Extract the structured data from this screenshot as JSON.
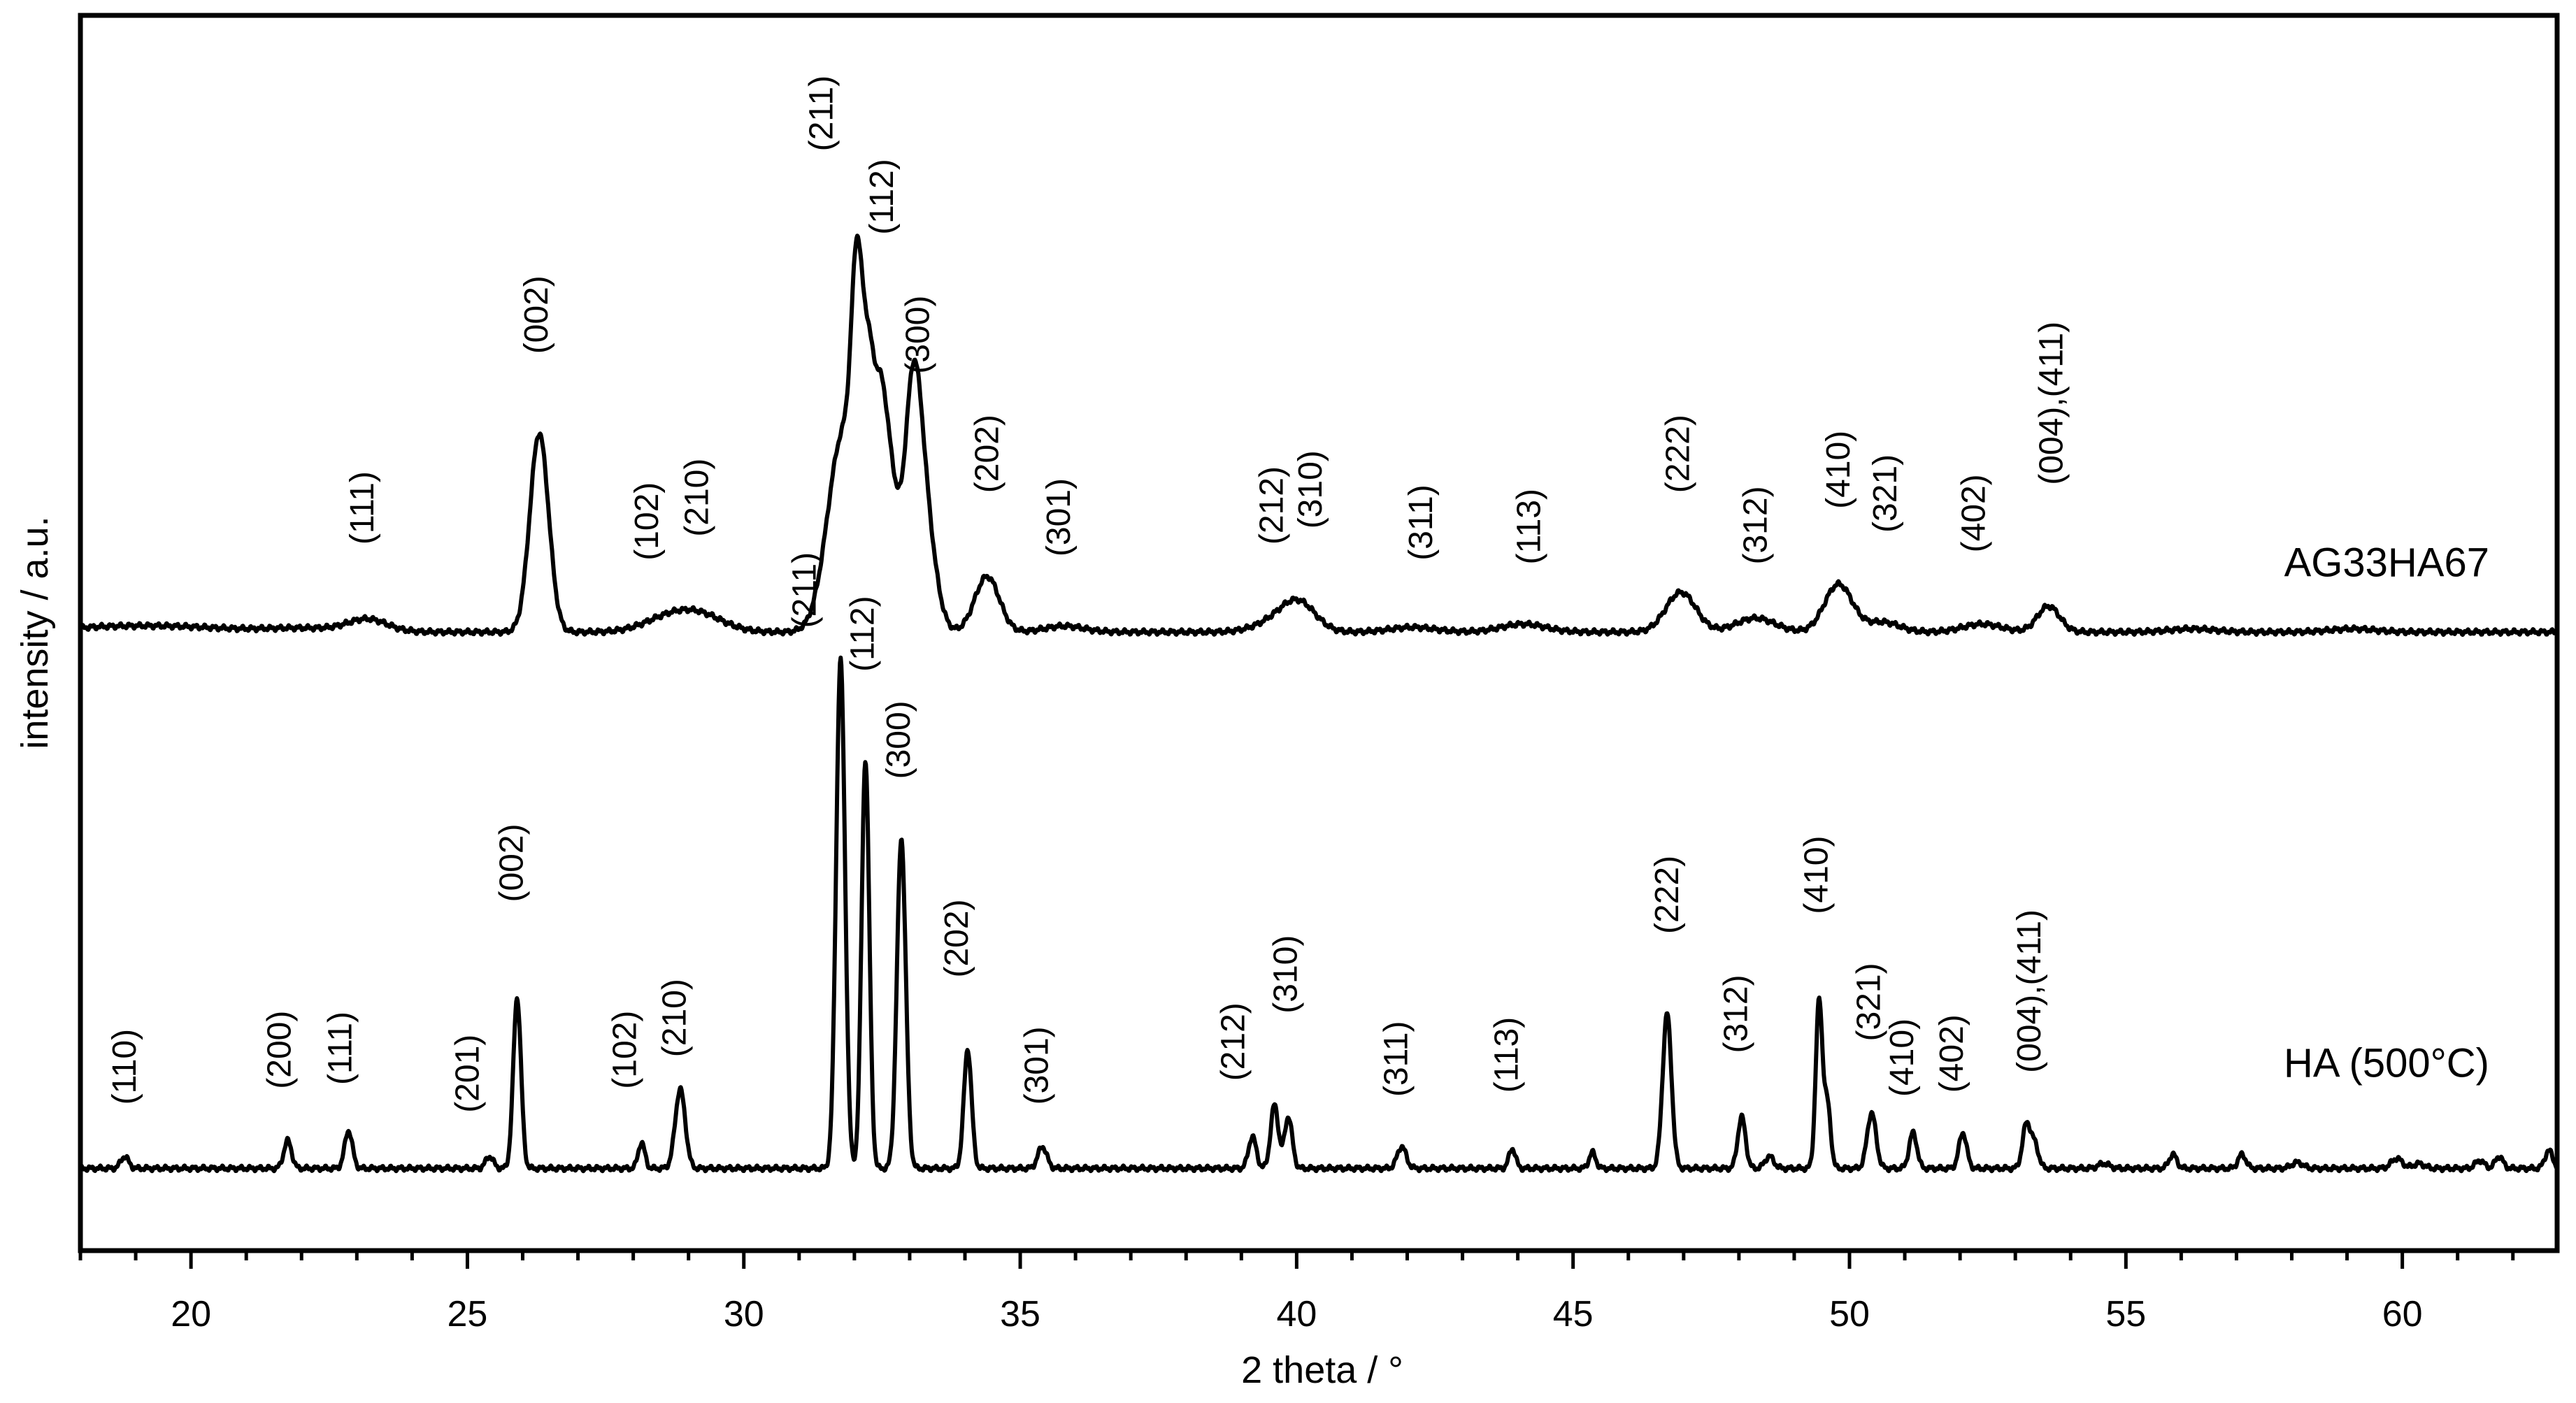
{
  "chart_data": {
    "type": "line",
    "title": "",
    "xlabel": "2 theta / °",
    "ylabel": "intensity / a.u.",
    "xlim": [
      18,
      62.8
    ],
    "x_ticks": [
      "20",
      "25",
      "30",
      "35",
      "40",
      "45",
      "50",
      "55",
      "60"
    ],
    "y_scale": "arbitrary units, offset stacked traces",
    "grid": false,
    "legend": "inline labels at right",
    "line_color": "#000000",
    "series": [
      {
        "name": "AG33HA67",
        "baseline": 1.55,
        "peaks": [
          {
            "x": 18.5,
            "h": 0.012,
            "w": 0.9
          },
          {
            "x": 19.9,
            "h": 0.01,
            "w": 0.8
          },
          {
            "x": 22.0,
            "h": 0.01,
            "w": 0.8
          },
          {
            "x": 23.2,
            "h": 0.03,
            "w": 0.35
          },
          {
            "x": 26.3,
            "h": 0.5,
            "w": 0.17
          },
          {
            "x": 28.6,
            "h": 0.03,
            "w": 0.45
          },
          {
            "x": 29.2,
            "h": 0.04,
            "w": 0.45
          },
          {
            "x": 31.8,
            "h": 0.5,
            "w": 0.28
          },
          {
            "x": 32.05,
            "h": 0.6,
            "w": 0.1
          },
          {
            "x": 32.25,
            "h": 0.45,
            "w": 0.1
          },
          {
            "x": 32.45,
            "h": 0.42,
            "w": 0.12
          },
          {
            "x": 32.65,
            "h": 0.35,
            "w": 0.15
          },
          {
            "x": 33.05,
            "h": 0.48,
            "w": 0.15
          },
          {
            "x": 33.25,
            "h": 0.3,
            "w": 0.2
          },
          {
            "x": 34.4,
            "h": 0.14,
            "w": 0.22
          },
          {
            "x": 35.8,
            "h": 0.015,
            "w": 0.35
          },
          {
            "x": 39.7,
            "h": 0.03,
            "w": 0.4
          },
          {
            "x": 40.05,
            "h": 0.06,
            "w": 0.3
          },
          {
            "x": 42.1,
            "h": 0.012,
            "w": 0.4
          },
          {
            "x": 44.1,
            "h": 0.02,
            "w": 0.4
          },
          {
            "x": 46.95,
            "h": 0.1,
            "w": 0.27
          },
          {
            "x": 48.3,
            "h": 0.035,
            "w": 0.35
          },
          {
            "x": 49.8,
            "h": 0.12,
            "w": 0.25
          },
          {
            "x": 50.6,
            "h": 0.025,
            "w": 0.3
          },
          {
            "x": 52.4,
            "h": 0.02,
            "w": 0.35
          },
          {
            "x": 53.6,
            "h": 0.065,
            "w": 0.2
          },
          {
            "x": 56.2,
            "h": 0.008,
            "w": 0.4
          },
          {
            "x": 59.1,
            "h": 0.008,
            "w": 0.4
          }
        ]
      },
      {
        "name": "HA (500°C)",
        "baseline": 0.2,
        "peaks": [
          {
            "x": 18.8,
            "h": 0.03,
            "w": 0.07
          },
          {
            "x": 21.75,
            "h": 0.07,
            "w": 0.07
          },
          {
            "x": 22.85,
            "h": 0.095,
            "w": 0.07
          },
          {
            "x": 25.4,
            "h": 0.03,
            "w": 0.07
          },
          {
            "x": 25.9,
            "h": 0.43,
            "w": 0.07
          },
          {
            "x": 28.15,
            "h": 0.065,
            "w": 0.06
          },
          {
            "x": 28.85,
            "h": 0.2,
            "w": 0.09
          },
          {
            "x": 31.75,
            "h": 1.28,
            "w": 0.08
          },
          {
            "x": 32.2,
            "h": 1.03,
            "w": 0.07
          },
          {
            "x": 32.85,
            "h": 0.83,
            "w": 0.08
          },
          {
            "x": 34.05,
            "h": 0.3,
            "w": 0.07
          },
          {
            "x": 35.4,
            "h": 0.055,
            "w": 0.08
          },
          {
            "x": 39.2,
            "h": 0.08,
            "w": 0.07
          },
          {
            "x": 39.6,
            "h": 0.16,
            "w": 0.07
          },
          {
            "x": 39.85,
            "h": 0.13,
            "w": 0.07
          },
          {
            "x": 41.9,
            "h": 0.055,
            "w": 0.08
          },
          {
            "x": 43.9,
            "h": 0.05,
            "w": 0.06
          },
          {
            "x": 45.35,
            "h": 0.04,
            "w": 0.06
          },
          {
            "x": 46.7,
            "h": 0.39,
            "w": 0.08
          },
          {
            "x": 48.05,
            "h": 0.13,
            "w": 0.07
          },
          {
            "x": 48.55,
            "h": 0.03,
            "w": 0.08
          },
          {
            "x": 49.45,
            "h": 0.42,
            "w": 0.06
          },
          {
            "x": 49.6,
            "h": 0.16,
            "w": 0.06
          },
          {
            "x": 50.4,
            "h": 0.14,
            "w": 0.08
          },
          {
            "x": 51.15,
            "h": 0.09,
            "w": 0.07
          },
          {
            "x": 52.05,
            "h": 0.09,
            "w": 0.07
          },
          {
            "x": 53.2,
            "h": 0.11,
            "w": 0.07
          },
          {
            "x": 53.35,
            "h": 0.06,
            "w": 0.07
          },
          {
            "x": 54.6,
            "h": 0.012,
            "w": 0.1
          },
          {
            "x": 55.85,
            "h": 0.035,
            "w": 0.07
          },
          {
            "x": 57.1,
            "h": 0.035,
            "w": 0.07
          },
          {
            "x": 58.1,
            "h": 0.015,
            "w": 0.1
          },
          {
            "x": 59.9,
            "h": 0.025,
            "w": 0.1
          },
          {
            "x": 60.3,
            "h": 0.012,
            "w": 0.1
          },
          {
            "x": 61.4,
            "h": 0.02,
            "w": 0.08
          },
          {
            "x": 61.75,
            "h": 0.03,
            "w": 0.07
          },
          {
            "x": 62.65,
            "h": 0.045,
            "w": 0.07
          }
        ]
      }
    ],
    "annotations": [
      {
        "text": "(111)",
        "x": 23.3,
        "y": 1.77
      },
      {
        "text": "(002)",
        "x": 26.45,
        "y": 2.25
      },
      {
        "text": "(102)",
        "x": 28.45,
        "y": 1.73
      },
      {
        "text": "(210)",
        "x": 29.35,
        "y": 1.79
      },
      {
        "text": "(211)",
        "x": 31.6,
        "y": 2.76
      },
      {
        "text": "(112)",
        "x": 32.7,
        "y": 2.55
      },
      {
        "text": "(300)",
        "x": 33.35,
        "y": 2.2
      },
      {
        "text": "(202)",
        "x": 34.6,
        "y": 1.9
      },
      {
        "text": "(301)",
        "x": 35.9,
        "y": 1.74
      },
      {
        "text": "(212)",
        "x": 39.75,
        "y": 1.77
      },
      {
        "text": "(310)",
        "x": 40.45,
        "y": 1.81
      },
      {
        "text": "(311)",
        "x": 42.45,
        "y": 1.73
      },
      {
        "text": "(113)",
        "x": 44.4,
        "y": 1.72
      },
      {
        "text": "(222)",
        "x": 47.1,
        "y": 1.9
      },
      {
        "text": "(312)",
        "x": 48.5,
        "y": 1.72
      },
      {
        "text": "(410)",
        "x": 50.0,
        "y": 1.86
      },
      {
        "text": "(321)",
        "x": 50.85,
        "y": 1.8
      },
      {
        "text": "(402)",
        "x": 52.45,
        "y": 1.75
      },
      {
        "text": "(004),(411)",
        "x": 53.85,
        "y": 1.92
      },
      {
        "text": "(110)",
        "x": 19.0,
        "y": 0.36
      },
      {
        "text": "(200)",
        "x": 21.8,
        "y": 0.4
      },
      {
        "text": "(111)",
        "x": 22.9,
        "y": 0.41
      },
      {
        "text": "(201)",
        "x": 25.2,
        "y": 0.34
      },
      {
        "text": "(002)",
        "x": 26.0,
        "y": 0.87
      },
      {
        "text": "(102)",
        "x": 28.05,
        "y": 0.4
      },
      {
        "text": "(210)",
        "x": 28.95,
        "y": 0.48
      },
      {
        "text": "(211)",
        "x": 31.3,
        "y": 1.56
      },
      {
        "text": "(112)",
        "x": 32.35,
        "y": 1.45
      },
      {
        "text": "(300)",
        "x": 33.0,
        "y": 1.18
      },
      {
        "text": "(202)",
        "x": 34.05,
        "y": 0.68
      },
      {
        "text": "(301)",
        "x": 35.5,
        "y": 0.36
      },
      {
        "text": "(212)",
        "x": 39.05,
        "y": 0.42
      },
      {
        "text": "(310)",
        "x": 40.0,
        "y": 0.59
      },
      {
        "text": "(311)",
        "x": 42.0,
        "y": 0.38
      },
      {
        "text": "(113)",
        "x": 44.0,
        "y": 0.39
      },
      {
        "text": "(222)",
        "x": 46.9,
        "y": 0.79
      },
      {
        "text": "(312)",
        "x": 48.15,
        "y": 0.49
      },
      {
        "text": "(410)",
        "x": 49.6,
        "y": 0.84
      },
      {
        "text": "(321)",
        "x": 50.55,
        "y": 0.52
      },
      {
        "text": "(410)",
        "x": 51.15,
        "y": 0.38
      },
      {
        "text": "(402)",
        "x": 52.05,
        "y": 0.39
      },
      {
        "text": "(004),(411)",
        "x": 53.45,
        "y": 0.44
      }
    ]
  }
}
